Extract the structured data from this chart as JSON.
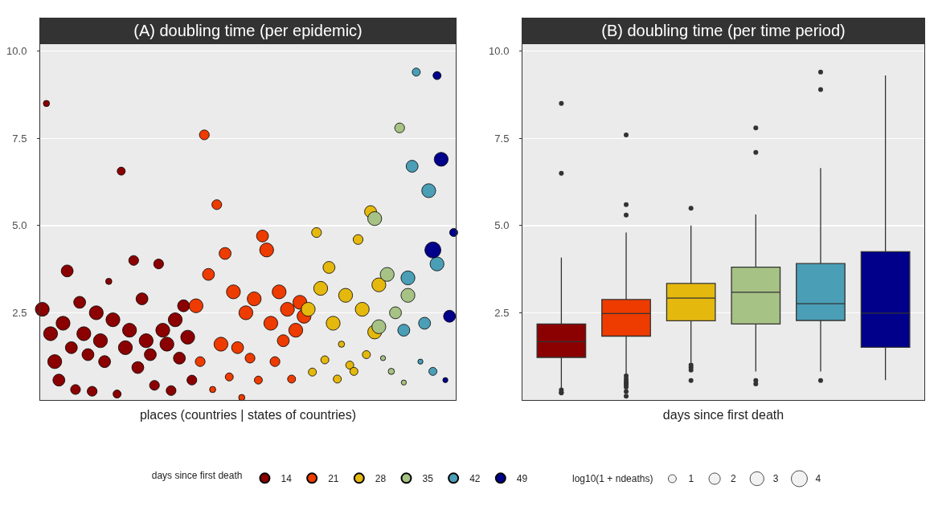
{
  "chart_data": [
    {
      "type": "bubble",
      "title": "(A) doubling time (per epidemic)",
      "xlabel": "places (countries | states of countries)",
      "legend_title": "days since first death",
      "legend": "bottom",
      "grid": "y",
      "tick_labels": "y",
      "marker": "circle",
      "ylim": [
        0,
        10.2
      ],
      "yticks": [
        {
          "value": 2.5,
          "label": "2.5"
        },
        {
          "value": 5,
          "label": "5.0"
        },
        7.5,
        {
          "value": 10,
          "label": "10.0"
        }
      ],
      "size_legend": [
        1,
        2,
        3,
        4
      ],
      "annotations": [
        "log10(1 + ndeaths)"
      ],
      "categories": [
        null,
        null,
        null,
        null,
        null,
        null,
        null,
        null,
        null,
        null,
        null,
        null,
        null,
        null,
        null,
        null,
        null,
        null,
        null,
        null,
        null,
        null,
        null,
        null,
        null,
        null,
        null,
        null,
        null,
        null,
        null,
        null,
        null,
        null,
        null,
        null,
        null,
        null,
        null,
        null,
        null,
        null,
        null,
        null,
        null,
        null,
        null,
        null,
        null,
        null,
        null,
        null,
        null,
        null,
        null,
        null,
        null,
        null,
        null,
        null,
        null,
        null,
        null,
        null,
        null,
        null,
        null,
        null,
        null,
        null,
        null,
        null,
        null,
        null,
        null,
        null,
        null,
        null,
        null,
        null,
        null,
        null,
        null,
        null,
        null,
        null,
        null,
        null,
        null,
        null,
        null,
        null,
        null,
        null,
        null,
        null,
        null,
        null,
        null,
        null
      ],
      "series": [
        {
          "name": "14",
          "color": "#8b0000",
          "values": [
            2.6,
            8.5,
            1.9,
            1.1,
            0.57,
            2.2,
            3.7,
            1.5,
            0.3,
            2.8,
            1.9,
            1.3,
            0.25,
            2.5,
            1.7,
            1.1,
            3.4,
            2.3,
            0.17,
            6.56,
            1.5,
            2.0,
            4.0,
            0.93,
            2.9,
            1.7,
            1.3,
            0.42,
            3.9,
            2.0,
            1.6,
            0.27,
            2.3,
            1.2,
            2.7,
            1.8,
            0.57,
            null,
            null,
            null,
            null,
            null,
            null,
            null,
            null,
            null,
            null,
            null,
            null,
            null,
            null,
            null,
            null,
            null,
            null,
            null,
            null,
            null,
            null,
            null,
            null,
            null,
            null,
            null,
            null,
            null,
            null,
            null,
            null,
            null,
            null,
            null,
            null,
            null,
            null,
            null,
            null,
            null,
            null,
            null,
            null,
            null,
            null,
            null,
            null,
            null,
            null,
            null,
            null,
            null,
            null,
            null,
            null,
            null,
            null,
            null,
            null,
            null,
            null,
            null
          ],
          "sizes": [
            3,
            0.6,
            3,
            3,
            2.2,
            3,
            2.2,
            2.2,
            1.5,
            2.2,
            3,
            2.2,
            1.5,
            3,
            3,
            2.2,
            0.6,
            3,
            1,
            1,
            3,
            3,
            1.5,
            2.2,
            2.2,
            3,
            2.2,
            1.5,
            1.5,
            3,
            3,
            1.5,
            3,
            2.2,
            2.2,
            3,
            1.5,
            null,
            null,
            null,
            null,
            null,
            null,
            null,
            null,
            null,
            null,
            null,
            null,
            null,
            null,
            null,
            null,
            null,
            null,
            null,
            null,
            null,
            null,
            null,
            null,
            null,
            null,
            null,
            null,
            null,
            null,
            null,
            null,
            null,
            null,
            null,
            null,
            null,
            null,
            null,
            null,
            null,
            null,
            null,
            null,
            null,
            null,
            null,
            null,
            null,
            null,
            null,
            null,
            null,
            null,
            null,
            null,
            null,
            null,
            null,
            null,
            null,
            null,
            null
          ]
        },
        {
          "name": "21",
          "color": "#ee3b00",
          "values": [
            null,
            null,
            null,
            null,
            null,
            null,
            null,
            null,
            null,
            null,
            null,
            null,
            null,
            null,
            null,
            null,
            null,
            null,
            null,
            null,
            null,
            null,
            null,
            null,
            null,
            null,
            null,
            null,
            null,
            null,
            null,
            null,
            null,
            null,
            null,
            null,
            null,
            2.7,
            1.1,
            7.6,
            3.6,
            0.3,
            5.6,
            1.6,
            4.2,
            0.66,
            3.1,
            1.5,
            0.07,
            2.5,
            1.2,
            2.9,
            0.57,
            4.7,
            4.3,
            2.2,
            1.1,
            3.1,
            1.7,
            2.6,
            0.6,
            2.0,
            2.8,
            2.4,
            null,
            null,
            null,
            null,
            null,
            null,
            null,
            null,
            null,
            null,
            null,
            null,
            null,
            null,
            null,
            null,
            null,
            null,
            null,
            null,
            null,
            null,
            null,
            null,
            null,
            null,
            null,
            null,
            null,
            null,
            null,
            null,
            null,
            null,
            null,
            null
          ],
          "sizes": [
            null,
            null,
            null,
            null,
            null,
            null,
            null,
            null,
            null,
            null,
            null,
            null,
            null,
            null,
            null,
            null,
            null,
            null,
            null,
            null,
            null,
            null,
            null,
            null,
            null,
            null,
            null,
            null,
            null,
            null,
            null,
            null,
            null,
            null,
            null,
            null,
            null,
            3,
            1.5,
            1.5,
            2.2,
            0.6,
            1.5,
            3,
            2.2,
            1,
            3,
            2.2,
            0.6,
            3,
            1.5,
            3,
            1,
            2.2,
            3,
            3,
            1.5,
            3,
            2.2,
            3,
            1,
            3,
            3,
            3,
            null,
            null,
            null,
            null,
            null,
            null,
            null,
            null,
            null,
            null,
            null,
            null,
            null,
            null,
            null,
            null,
            null,
            null,
            null,
            null,
            null,
            null,
            null,
            null,
            null,
            null,
            null,
            null,
            null,
            null,
            null,
            null,
            null,
            null,
            null,
            null
          ]
        },
        {
          "name": "28",
          "color": "#e5b80e",
          "values": [
            null,
            null,
            null,
            null,
            null,
            null,
            null,
            null,
            null,
            null,
            null,
            null,
            null,
            null,
            null,
            null,
            null,
            null,
            null,
            null,
            null,
            null,
            null,
            null,
            null,
            null,
            null,
            null,
            null,
            null,
            null,
            null,
            null,
            null,
            null,
            null,
            null,
            null,
            null,
            null,
            null,
            null,
            null,
            null,
            null,
            null,
            null,
            null,
            null,
            null,
            null,
            null,
            null,
            null,
            null,
            null,
            null,
            null,
            null,
            null,
            null,
            null,
            null,
            null,
            2.6,
            0.8,
            4.8,
            3.2,
            1.15,
            3.8,
            2.2,
            0.6,
            1.6,
            3.0,
            1.0,
            0.82,
            4.6,
            2.6,
            1.3,
            5.4,
            1.95,
            3.3,
            null,
            null,
            null,
            null,
            null,
            null,
            null,
            null,
            null,
            null,
            null,
            null,
            null,
            null,
            null,
            null,
            null,
            null
          ],
          "sizes": [
            null,
            null,
            null,
            null,
            null,
            null,
            null,
            null,
            null,
            null,
            null,
            null,
            null,
            null,
            null,
            null,
            null,
            null,
            null,
            null,
            null,
            null,
            null,
            null,
            null,
            null,
            null,
            null,
            null,
            null,
            null,
            null,
            null,
            null,
            null,
            null,
            null,
            null,
            null,
            null,
            null,
            null,
            null,
            null,
            null,
            null,
            null,
            null,
            null,
            null,
            null,
            null,
            null,
            null,
            null,
            null,
            null,
            null,
            null,
            null,
            null,
            null,
            null,
            null,
            3,
            1,
            1.5,
            3,
            1,
            2.2,
            3,
            1,
            0.6,
            3,
            1,
            1,
            1.5,
            3,
            1,
            2.2,
            3,
            3,
            null,
            null,
            null,
            null,
            null,
            null,
            null,
            null,
            null,
            null,
            null,
            null,
            null,
            null,
            null,
            null,
            null,
            null
          ]
        },
        {
          "name": "35",
          "color": "#a6c285",
          "values": [
            null,
            null,
            null,
            null,
            null,
            null,
            null,
            null,
            null,
            null,
            null,
            null,
            null,
            null,
            null,
            null,
            null,
            null,
            null,
            null,
            null,
            null,
            null,
            null,
            null,
            null,
            null,
            null,
            null,
            null,
            null,
            null,
            null,
            null,
            null,
            null,
            null,
            null,
            null,
            null,
            null,
            null,
            null,
            null,
            null,
            null,
            null,
            null,
            null,
            null,
            null,
            null,
            null,
            null,
            null,
            null,
            null,
            null,
            null,
            null,
            null,
            null,
            null,
            null,
            null,
            null,
            null,
            null,
            null,
            null,
            null,
            null,
            null,
            null,
            null,
            null,
            null,
            null,
            null,
            null,
            5.2,
            2.1,
            1.2,
            3.6,
            0.82,
            2.5,
            7.8,
            0.5,
            3.0,
            null,
            null,
            null,
            null,
            null,
            null,
            null,
            null,
            null,
            null,
            null
          ],
          "sizes": [
            null,
            null,
            null,
            null,
            null,
            null,
            null,
            null,
            null,
            null,
            null,
            null,
            null,
            null,
            null,
            null,
            null,
            null,
            null,
            null,
            null,
            null,
            null,
            null,
            null,
            null,
            null,
            null,
            null,
            null,
            null,
            null,
            null,
            null,
            null,
            null,
            null,
            null,
            null,
            null,
            null,
            null,
            null,
            null,
            null,
            null,
            null,
            null,
            null,
            null,
            null,
            null,
            null,
            null,
            null,
            null,
            null,
            null,
            null,
            null,
            null,
            null,
            null,
            null,
            null,
            null,
            null,
            null,
            null,
            null,
            null,
            null,
            null,
            null,
            null,
            null,
            null,
            null,
            null,
            null,
            3,
            3,
            0.4,
            3,
            0.6,
            2.2,
            1.5,
            0.4,
            3,
            null,
            null,
            null,
            null,
            null,
            null,
            null,
            null,
            null,
            null,
            null
          ]
        },
        {
          "name": "42",
          "color": "#4a9fb7",
          "values": [
            null,
            null,
            null,
            null,
            null,
            null,
            null,
            null,
            null,
            null,
            null,
            null,
            null,
            null,
            null,
            null,
            null,
            null,
            null,
            null,
            null,
            null,
            null,
            null,
            null,
            null,
            null,
            null,
            null,
            null,
            null,
            null,
            null,
            null,
            null,
            null,
            null,
            null,
            null,
            null,
            null,
            null,
            null,
            null,
            null,
            null,
            null,
            null,
            null,
            null,
            null,
            null,
            null,
            null,
            null,
            null,
            null,
            null,
            null,
            null,
            null,
            null,
            null,
            null,
            null,
            null,
            null,
            null,
            null,
            null,
            null,
            null,
            null,
            null,
            null,
            null,
            null,
            null,
            null,
            null,
            null,
            null,
            null,
            null,
            null,
            null,
            null,
            2.0,
            3.5,
            6.7,
            9.4,
            1.1,
            2.2,
            6.0,
            0.82,
            3.9,
            null,
            null,
            null,
            null
          ],
          "sizes": [
            null,
            null,
            null,
            null,
            null,
            null,
            null,
            null,
            null,
            null,
            null,
            null,
            null,
            null,
            null,
            null,
            null,
            null,
            null,
            null,
            null,
            null,
            null,
            null,
            null,
            null,
            null,
            null,
            null,
            null,
            null,
            null,
            null,
            null,
            null,
            null,
            null,
            null,
            null,
            null,
            null,
            null,
            null,
            null,
            null,
            null,
            null,
            null,
            null,
            null,
            null,
            null,
            null,
            null,
            null,
            null,
            null,
            null,
            null,
            null,
            null,
            null,
            null,
            null,
            null,
            null,
            null,
            null,
            null,
            null,
            null,
            null,
            null,
            null,
            null,
            null,
            null,
            null,
            null,
            null,
            null,
            null,
            null,
            null,
            null,
            null,
            null,
            2.2,
            3,
            2.2,
            1,
            0.4,
            2.2,
            3,
            1,
            3,
            null,
            null,
            null,
            null
          ]
        },
        {
          "name": "49",
          "color": "#00008b",
          "values": [
            null,
            null,
            null,
            null,
            null,
            null,
            null,
            null,
            null,
            null,
            null,
            null,
            null,
            null,
            null,
            null,
            null,
            null,
            null,
            null,
            null,
            null,
            null,
            null,
            null,
            null,
            null,
            null,
            null,
            null,
            null,
            null,
            null,
            null,
            null,
            null,
            null,
            null,
            null,
            null,
            null,
            null,
            null,
            null,
            null,
            null,
            null,
            null,
            null,
            null,
            null,
            null,
            null,
            null,
            null,
            null,
            null,
            null,
            null,
            null,
            null,
            null,
            null,
            null,
            null,
            null,
            null,
            null,
            null,
            null,
            null,
            null,
            null,
            null,
            null,
            null,
            null,
            null,
            null,
            null,
            null,
            null,
            null,
            null,
            null,
            null,
            null,
            null,
            null,
            null,
            null,
            null,
            null,
            null,
            4.3,
            9.3,
            6.9,
            0.57,
            2.4,
            4.8
          ],
          "sizes": [
            null,
            null,
            null,
            null,
            null,
            null,
            null,
            null,
            null,
            null,
            null,
            null,
            null,
            null,
            null,
            null,
            null,
            null,
            null,
            null,
            null,
            null,
            null,
            null,
            null,
            null,
            null,
            null,
            null,
            null,
            null,
            null,
            null,
            null,
            null,
            null,
            null,
            null,
            null,
            null,
            null,
            null,
            null,
            null,
            null,
            null,
            null,
            null,
            null,
            null,
            null,
            null,
            null,
            null,
            null,
            null,
            null,
            null,
            null,
            null,
            null,
            null,
            null,
            null,
            null,
            null,
            null,
            null,
            null,
            null,
            null,
            null,
            null,
            null,
            null,
            null,
            null,
            null,
            null,
            null,
            null,
            null,
            null,
            null,
            null,
            null,
            null,
            null,
            null,
            null,
            null,
            null,
            null,
            null,
            4,
            1,
            3,
            0.4,
            2.2,
            1
          ]
        }
      ]
    },
    {
      "type": "box",
      "title": "(B) doubling time (per time period)",
      "xlabel": "days since first death",
      "grid": "y",
      "tick_labels": "y",
      "ylim": [
        0,
        10.2
      ],
      "yticks": [
        {
          "value": 2.5,
          "label": "2.5"
        },
        {
          "value": 5,
          "label": "5.0"
        },
        7.5,
        {
          "value": 10,
          "label": "10.0"
        }
      ],
      "categories": [
        null,
        null,
        null,
        null,
        null,
        null
      ],
      "colors": [
        "#8b0000",
        "#ee3b00",
        "#e5b80e",
        "#a6c285",
        "#4a9fb7",
        "#00008b"
      ],
      "boxes": [
        {
          "low": 0.31,
          "q1": 1.22,
          "median": 1.67,
          "q3": 2.18,
          "high": 4.08,
          "outliers": [
            8.5,
            6.5,
            0.29,
            0.22,
            0.2
          ]
        },
        {
          "low": 0.72,
          "q1": 1.83,
          "median": 2.48,
          "q3": 2.88,
          "high": 4.8,
          "outliers": [
            7.6,
            5.6,
            5.3,
            0.69,
            0.6,
            0.53,
            0.47,
            0.44,
            0.37,
            0.24,
            0.11
          ]
        },
        {
          "low": 1.07,
          "q1": 2.27,
          "median": 2.92,
          "q3": 3.34,
          "high": 5.0,
          "outliers": [
            5.5,
            1.0,
            0.93,
            0.86,
            0.56
          ]
        },
        {
          "low": 0.82,
          "q1": 2.18,
          "median": 3.09,
          "q3": 3.81,
          "high": 5.32,
          "outliers": [
            7.8,
            7.1,
            0.56,
            0.46
          ]
        },
        {
          "low": 0.82,
          "q1": 2.28,
          "median": 2.76,
          "q3": 3.91,
          "high": 6.65,
          "outliers": [
            9.4,
            8.9,
            0.56
          ]
        },
        {
          "low": 0.57,
          "q1": 1.51,
          "median": 2.49,
          "q3": 4.25,
          "high": 9.3
        }
      ]
    }
  ]
}
